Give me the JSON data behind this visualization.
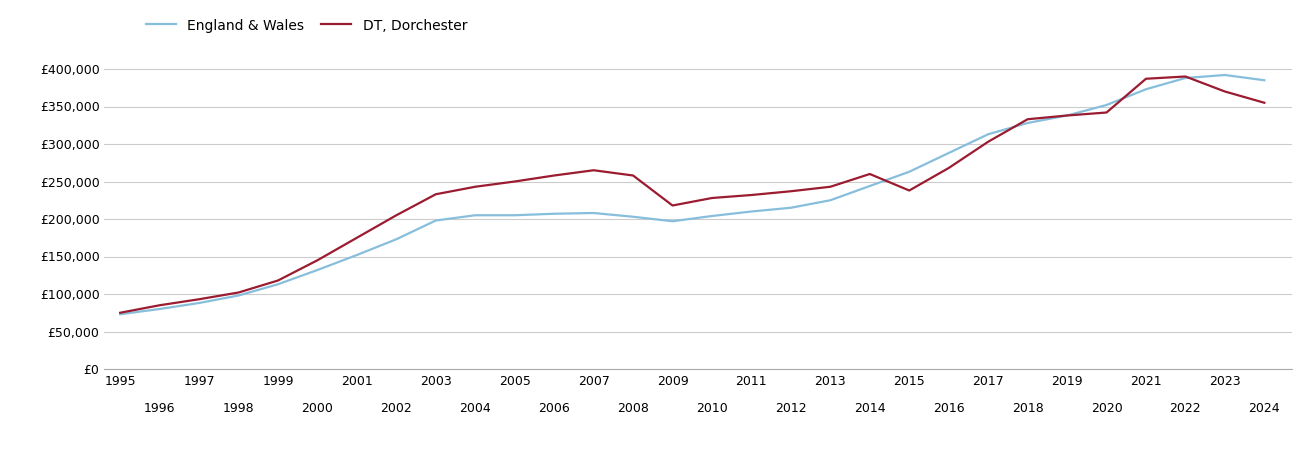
{
  "dt_dorchester": {
    "label": "DT, Dorchester",
    "color": "#9B1B30",
    "years": [
      1995,
      1996,
      1997,
      1998,
      1999,
      2000,
      2001,
      2002,
      2003,
      2004,
      2005,
      2006,
      2007,
      2008,
      2009,
      2010,
      2011,
      2012,
      2013,
      2014,
      2015,
      2016,
      2017,
      2018,
      2019,
      2020,
      2021,
      2022,
      2023,
      2024
    ],
    "values": [
      75000,
      85000,
      93000,
      102000,
      118000,
      145000,
      175000,
      205000,
      233000,
      243000,
      250000,
      258000,
      265000,
      258000,
      218000,
      228000,
      232000,
      237000,
      243000,
      260000,
      238000,
      268000,
      303000,
      333000,
      338000,
      342000,
      387000,
      390000,
      370000,
      355000
    ]
  },
  "england_wales": {
    "label": "England & Wales",
    "color": "#87BEDC",
    "years": [
      1995,
      1996,
      1997,
      1998,
      1999,
      2000,
      2001,
      2002,
      2003,
      2004,
      2005,
      2006,
      2007,
      2008,
      2009,
      2010,
      2011,
      2012,
      2013,
      2014,
      2015,
      2016,
      2017,
      2018,
      2019,
      2020,
      2021,
      2022,
      2023,
      2024
    ],
    "values": [
      73000,
      80000,
      88000,
      98000,
      113000,
      132000,
      152000,
      173000,
      198000,
      205000,
      205000,
      207000,
      208000,
      203000,
      197000,
      204000,
      210000,
      215000,
      225000,
      244000,
      263000,
      288000,
      313000,
      328000,
      338000,
      352000,
      373000,
      388000,
      392000,
      385000
    ]
  },
  "ylim": [
    0,
    420000
  ],
  "yticks": [
    0,
    50000,
    100000,
    150000,
    200000,
    250000,
    300000,
    350000,
    400000
  ],
  "xlim_start": 1994.6,
  "xlim_end": 2024.7,
  "background_color": "#ffffff",
  "grid_color": "#cccccc",
  "linewidth": 1.6
}
